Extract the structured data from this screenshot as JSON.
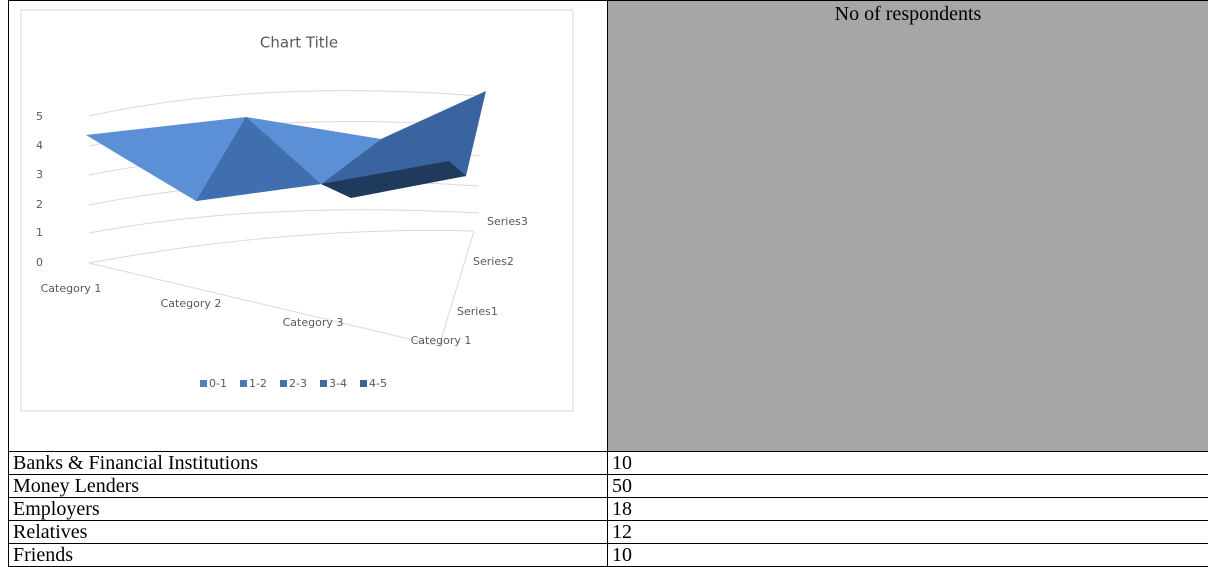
{
  "figure": {
    "title": "Chart Title",
    "value_axis": [
      0,
      1,
      2,
      3,
      4,
      5
    ],
    "categories": [
      "Category 1",
      "Category 2",
      "Category 3"
    ],
    "depth_category": "Category 1",
    "series": [
      "Series3",
      "Series2",
      "Series1"
    ],
    "legend": [
      "0-1",
      "1-2",
      "2-3",
      "3-4",
      "4-5"
    ]
  },
  "column_title": "No of respondents",
  "table": {
    "rows": [
      [
        "Banks & Financial Institutions",
        10
      ],
      [
        "Money Lenders",
        50
      ],
      [
        "Employers",
        18
      ],
      [
        "Relatives",
        12
      ],
      [
        "Friends",
        10
      ]
    ]
  }
}
